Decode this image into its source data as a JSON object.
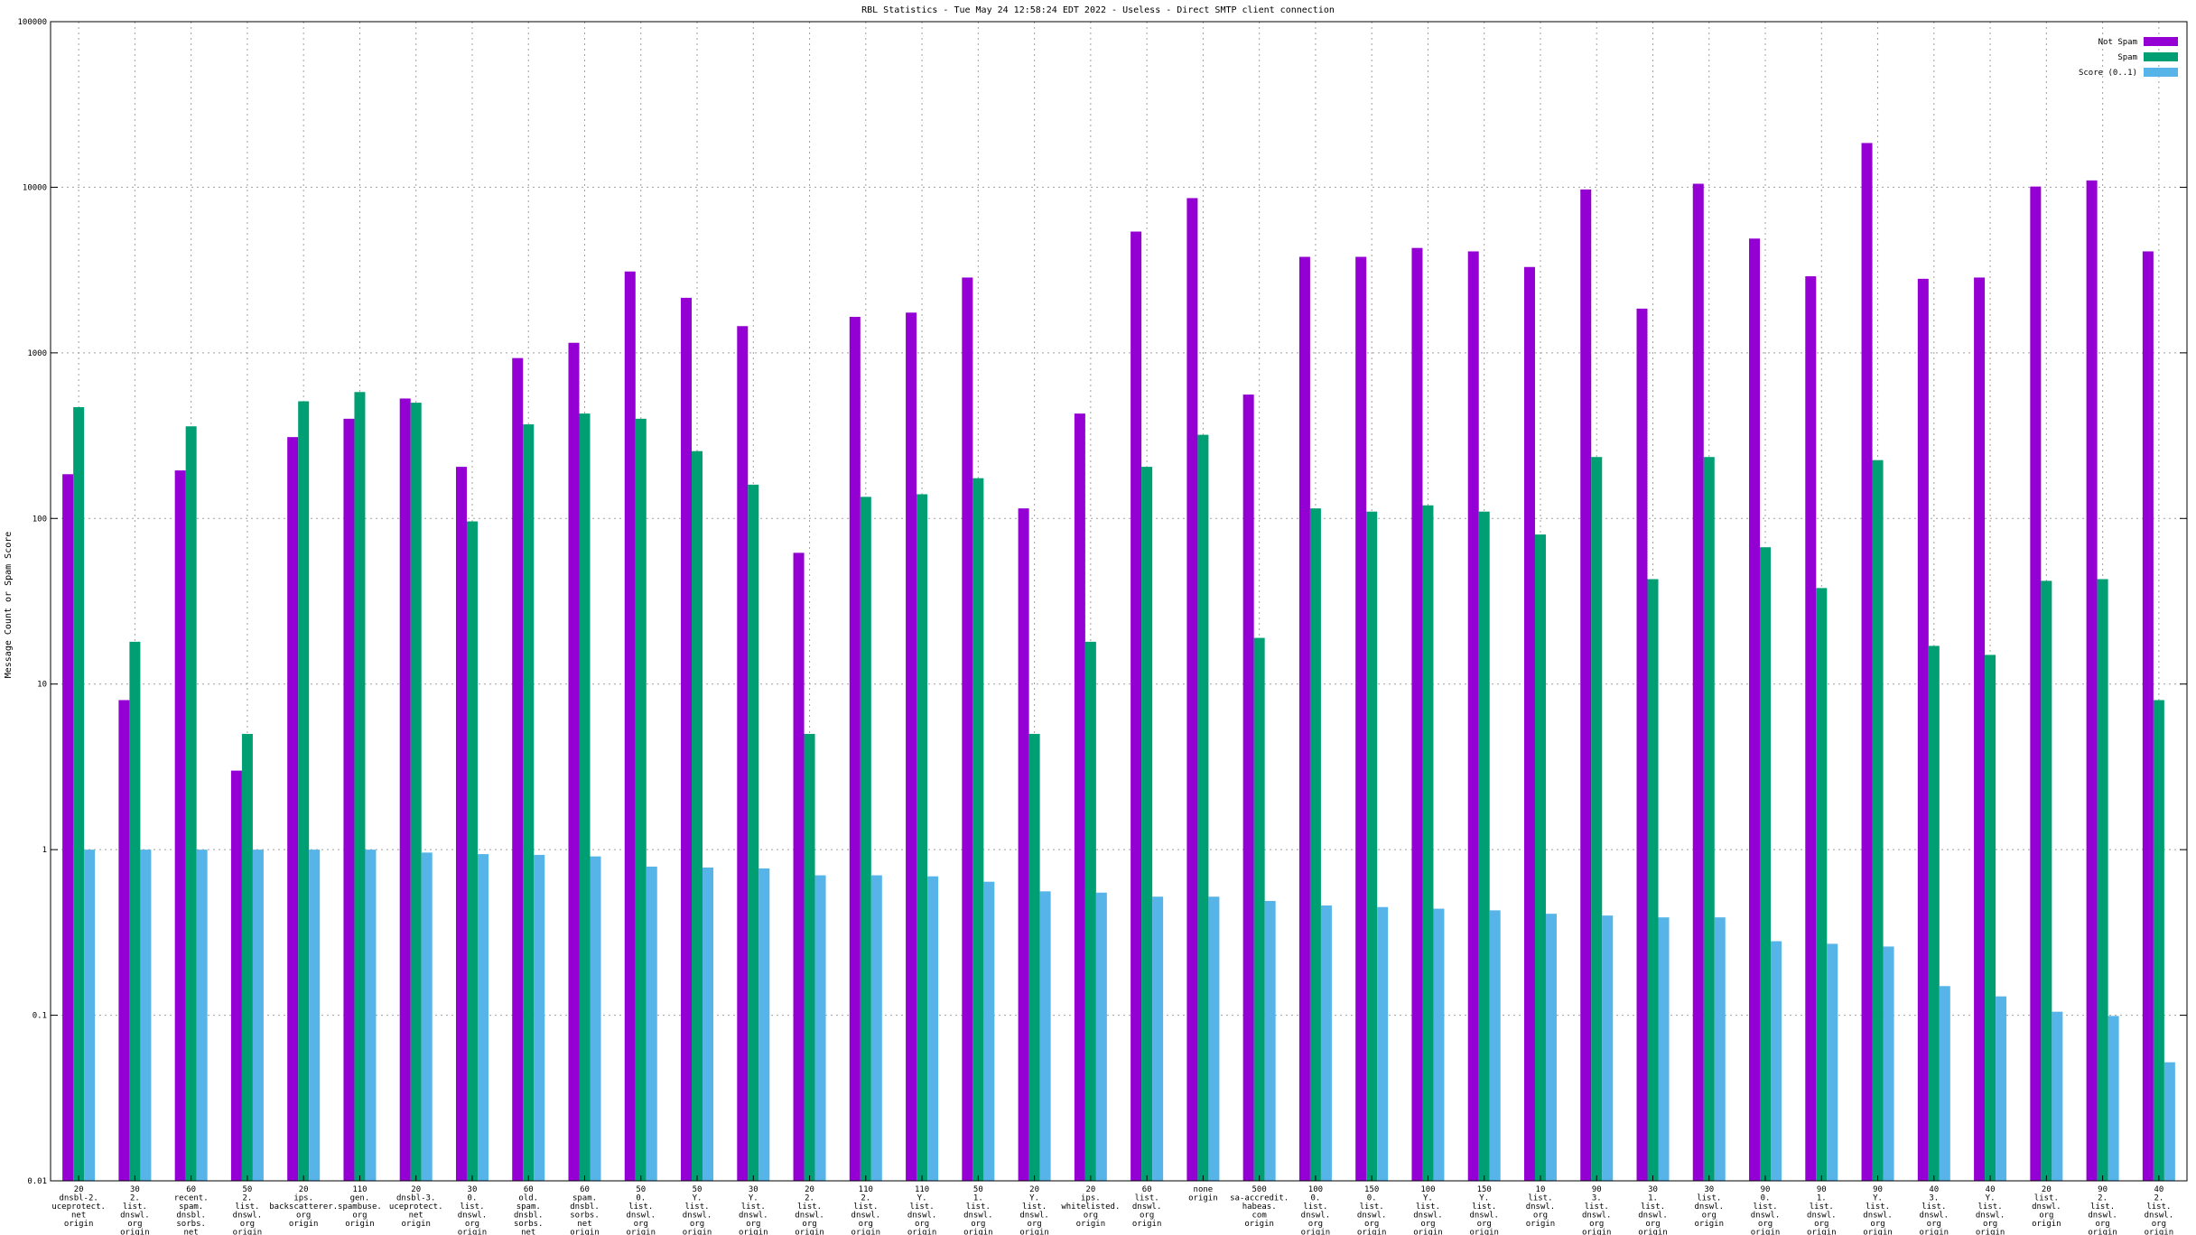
{
  "chart_data": {
    "type": "bar",
    "title": "RBL Statistics - Tue May 24 12:58:24 EDT 2022 - Useless - Direct SMTP client connection",
    "ylabel": "Message Count or Spam Score",
    "xlabel": "",
    "yscale": "log",
    "ylim": [
      0.01,
      100000
    ],
    "yticks": [
      "0.01",
      "0.1",
      "1",
      "10",
      "100",
      "1000",
      "10000",
      "100000"
    ],
    "grid": true,
    "legend_position": "top-right",
    "categories": [
      "20\ndnsbl-2.\nuceprotect.\nnet\norigin",
      "30\n2.\nlist.\ndnswl.\norg\norigin",
      "60\nrecent.\nspam.\ndnsbl.\nsorbs.\nnet\norigin",
      "50\n2.\nlist.\ndnswl.\norg\norigin",
      "20\nips.\nbackscatterer.\norg\norigin",
      "110\ngen.\nspambuse.\norg\norigin",
      "20\ndnsbl-3.\nuceprotect.\nnet\norigin",
      "30\n0.\nlist.\ndnswl.\norg\norigin",
      "60\nold.\nspam.\ndnsbl.\nsorbs.\nnet\norigin",
      "60\nspam.\ndnsbl.\nsorbs.\nnet\norigin",
      "50\n0.\nlist.\ndnswl.\norg\norigin",
      "50\nY.\nlist.\ndnswl.\norg\norigin",
      "30\nY.\nlist.\ndnswl.\norg\norigin",
      "20\n2.\nlist.\ndnswl.\norg\norigin",
      "110\n2.\nlist.\ndnswl.\norg\norigin",
      "110\nY.\nlist.\ndnswl.\norg\norigin",
      "50\n1.\nlist.\ndnswl.\norg\norigin",
      "20\nY.\nlist.\ndnswl.\norg\norigin",
      "20\nips.\nwhitelisted.\norg\norigin",
      "60\nlist.\ndnswl.\norg\norigin",
      "none\norigin",
      "500\nsa-accredit.\nhabeas.\ncom\norigin",
      "100\n0.\nlist.\ndnswl.\norg\norigin",
      "150\n0.\nlist.\ndnswl.\norg\norigin",
      "100\nY.\nlist.\ndnswl.\norg\norigin",
      "150\nY.\nlist.\ndnswl.\norg\norigin",
      "10\nlist.\ndnswl.\norg\norigin",
      "90\n3.\nlist.\ndnswl.\norg\norigin",
      "30\n1.\nlist.\ndnswl.\norg\norigin",
      "30\nlist.\ndnswl.\norg\norigin",
      "90\n0.\nlist.\ndnswl.\norg\norigin",
      "90\n1.\nlist.\ndnswl.\norg\norigin",
      "90\nY.\nlist.\ndnswl.\norg\norigin",
      "40\n3.\nlist.\ndnswl.\norg\norigin",
      "40\nY.\nlist.\ndnswl.\norg\norigin",
      "20\nlist.\ndnswl.\norg\norigin",
      "90\n2.\nlist.\ndnswl.\norg\norigin",
      "40\n2.\nlist.\ndnswl.\norg\norigin"
    ],
    "series": [
      {
        "name": "Not Spam",
        "color": "#9400d3",
        "values": [
          185,
          8,
          195,
          3,
          310,
          400,
          530,
          205,
          930,
          1150,
          3100,
          2150,
          1450,
          62,
          1650,
          1750,
          2850,
          115,
          430,
          5400,
          8600,
          560,
          3800,
          3800,
          4300,
          4100,
          3300,
          9700,
          1850,
          10500,
          4900,
          2900,
          18500,
          2800,
          2850,
          10100,
          11000,
          4100
        ]
      },
      {
        "name": "Spam",
        "color": "#009e73",
        "values": [
          470,
          18,
          360,
          5,
          510,
          580,
          500,
          96,
          370,
          430,
          400,
          255,
          160,
          5,
          135,
          140,
          175,
          5,
          18,
          205,
          320,
          19,
          115,
          110,
          120,
          110,
          80,
          235,
          43,
          235,
          67,
          38,
          225,
          17,
          15,
          42,
          43,
          8
        ]
      },
      {
        "name": "Score (0..1)",
        "color": "#56b4e9",
        "values": [
          1.0,
          1.0,
          1.0,
          1.0,
          1.0,
          1.0,
          0.96,
          0.94,
          0.93,
          0.91,
          0.79,
          0.78,
          0.77,
          0.7,
          0.7,
          0.69,
          0.64,
          0.56,
          0.55,
          0.52,
          0.52,
          0.49,
          0.46,
          0.45,
          0.44,
          0.43,
          0.41,
          0.4,
          0.39,
          0.39,
          0.28,
          0.27,
          0.26,
          0.15,
          0.13,
          0.105,
          0.099,
          0.052
        ]
      }
    ]
  }
}
